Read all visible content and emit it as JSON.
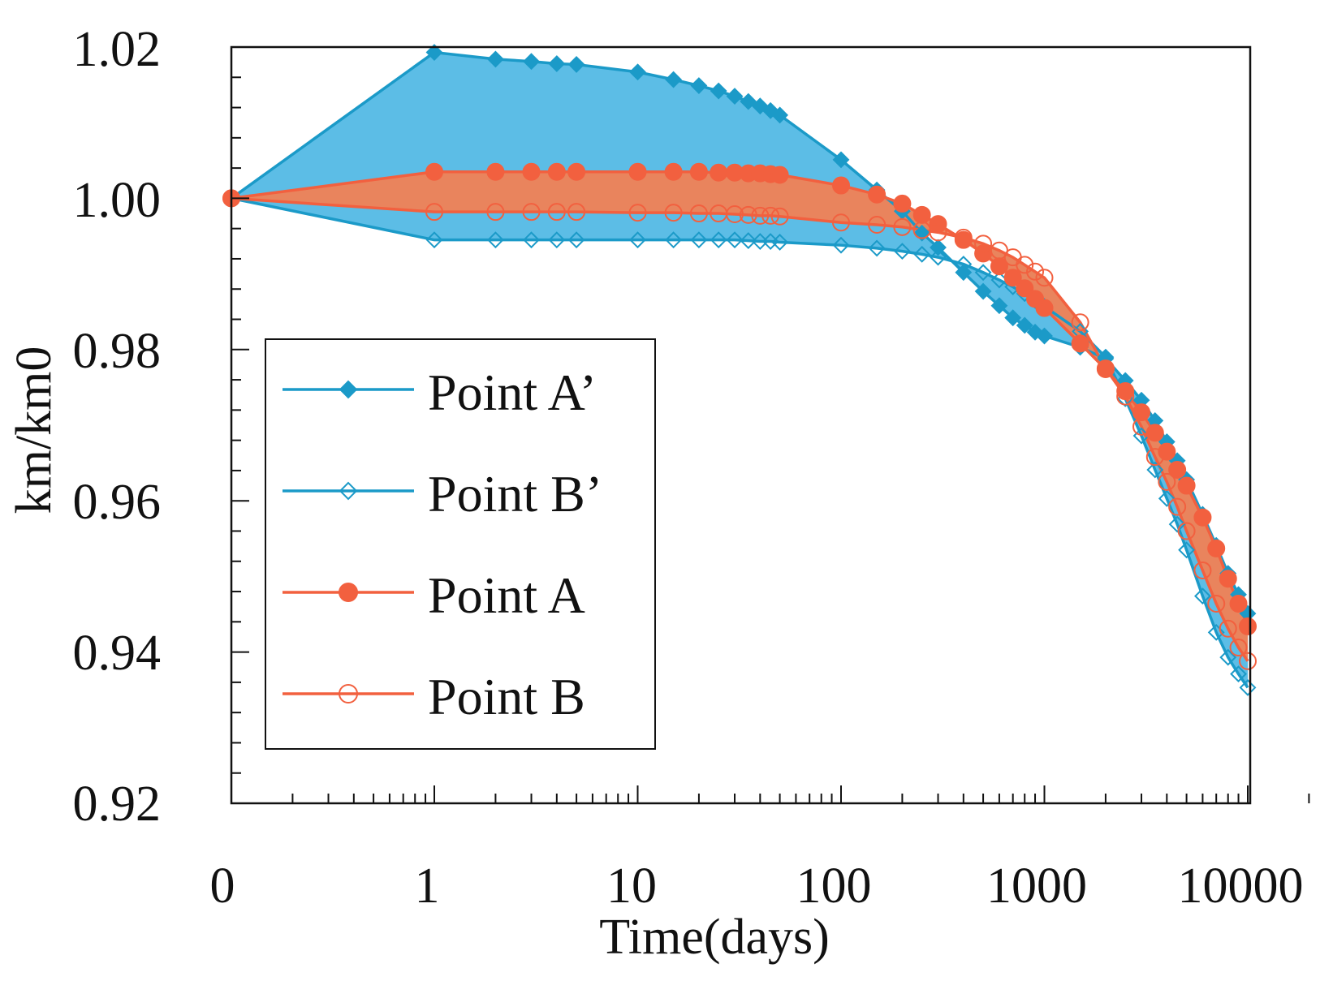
{
  "chart_data": {
    "type": "line",
    "title": "",
    "xlabel": "Time(days)",
    "ylabel": "km/km0",
    "xscale": "log (first tick 0)",
    "xticks": [
      "0",
      "1",
      "10",
      "100",
      "1000",
      "10000"
    ],
    "yticks": [
      "0.92",
      "0.94",
      "0.96",
      "0.98",
      "1.00",
      "1.02"
    ],
    "ylim": [
      0.92,
      1.02
    ],
    "xlim": [
      0,
      10000
    ],
    "grid": false,
    "legend_position": "left-center",
    "colors": {
      "blue": "#1b9ac8",
      "blue_fill": "#5cbde6",
      "red": "#f2603f",
      "red_fill": "#e9845d"
    },
    "series": [
      {
        "name": "Point A’",
        "marker": "filled-diamond",
        "color": "#1b9ac8",
        "x": [
          0,
          1,
          2,
          3,
          4,
          5,
          10,
          15,
          20,
          25,
          30,
          35,
          40,
          45,
          50,
          100,
          150,
          200,
          250,
          300,
          400,
          500,
          600,
          700,
          800,
          900,
          1000,
          1500,
          2000,
          2500,
          3000,
          3500,
          4000,
          4500,
          5000,
          6000,
          7000,
          8000,
          9000,
          10000
        ],
        "y": [
          1.0,
          1.0193,
          1.0184,
          1.0181,
          1.0178,
          1.0177,
          1.0167,
          1.0157,
          1.0149,
          1.0142,
          1.0135,
          1.0128,
          1.0122,
          1.0116,
          1.011,
          1.0051,
          1.0011,
          0.9983,
          0.9954,
          0.9935,
          0.9902,
          0.9877,
          0.9858,
          0.9842,
          0.9832,
          0.9823,
          0.9818,
          0.9803,
          0.9788,
          0.9759,
          0.9733,
          0.9706,
          0.9678,
          0.9653,
          0.9628,
          0.9582,
          0.9541,
          0.9504,
          0.9476,
          0.9451
        ]
      },
      {
        "name": "Point B’",
        "marker": "open-diamond",
        "color": "#1b9ac8",
        "x": [
          0,
          1,
          2,
          3,
          4,
          5,
          10,
          15,
          20,
          25,
          30,
          35,
          40,
          45,
          50,
          100,
          150,
          200,
          250,
          300,
          400,
          500,
          600,
          700,
          800,
          900,
          1000,
          1500,
          2000,
          2500,
          3000,
          3500,
          4000,
          4500,
          5000,
          6000,
          7000,
          8000,
          9000,
          10000
        ],
        "y": [
          1.0,
          0.9945,
          0.9945,
          0.9945,
          0.9945,
          0.9945,
          0.9945,
          0.9945,
          0.9945,
          0.9945,
          0.9945,
          0.9944,
          0.9943,
          0.9943,
          0.9942,
          0.9938,
          0.9934,
          0.993,
          0.9926,
          0.9922,
          0.9913,
          0.9902,
          0.9892,
          0.9883,
          0.9874,
          0.9865,
          0.9857,
          0.9824,
          0.979,
          0.9735,
          0.9686,
          0.9641,
          0.9603,
          0.9569,
          0.9535,
          0.9474,
          0.9426,
          0.9393,
          0.9371,
          0.9353
        ]
      },
      {
        "name": "Point A",
        "marker": "filled-circle",
        "color": "#f2603f",
        "x": [
          0,
          1,
          2,
          3,
          4,
          5,
          10,
          15,
          20,
          25,
          30,
          35,
          40,
          45,
          50,
          100,
          150,
          200,
          250,
          300,
          400,
          500,
          600,
          700,
          800,
          900,
          1000,
          1500,
          2000,
          2500,
          3000,
          3500,
          4000,
          4500,
          5000,
          6000,
          7000,
          8000,
          9000,
          10000
        ],
        "y": [
          1.0,
          1.0035,
          1.0035,
          1.0035,
          1.0035,
          1.0035,
          1.0035,
          1.0035,
          1.0035,
          1.0034,
          1.0034,
          1.0033,
          1.0033,
          1.0032,
          1.0031,
          1.0017,
          1.0005,
          0.9993,
          0.9978,
          0.9966,
          0.9945,
          0.9927,
          0.991,
          0.9895,
          0.9881,
          0.9867,
          0.9855,
          0.9808,
          0.9774,
          0.9745,
          0.9717,
          0.969,
          0.9665,
          0.9641,
          0.962,
          0.9578,
          0.9537,
          0.9497,
          0.9464,
          0.9434
        ]
      },
      {
        "name": "Point B",
        "marker": "open-circle",
        "color": "#f2603f",
        "x": [
          0,
          1,
          2,
          3,
          4,
          5,
          10,
          15,
          20,
          25,
          30,
          35,
          40,
          45,
          50,
          100,
          150,
          200,
          250,
          300,
          400,
          500,
          600,
          700,
          800,
          900,
          1000,
          1500,
          2000,
          2500,
          3000,
          3500,
          4000,
          4500,
          5000,
          6000,
          7000,
          8000,
          9000,
          10000
        ],
        "y": [
          1.0,
          0.9982,
          0.9982,
          0.9982,
          0.9982,
          0.9982,
          0.9981,
          0.9981,
          0.998,
          0.998,
          0.9979,
          0.9978,
          0.9977,
          0.9977,
          0.9976,
          0.9968,
          0.9965,
          0.9962,
          0.9958,
          0.9955,
          0.9948,
          0.994,
          0.9931,
          0.9922,
          0.9912,
          0.9903,
          0.9895,
          0.9836,
          0.9775,
          0.9738,
          0.9698,
          0.9658,
          0.9625,
          0.9592,
          0.956,
          0.9508,
          0.9464,
          0.9431,
          0.9406,
          0.9388
        ]
      }
    ]
  }
}
